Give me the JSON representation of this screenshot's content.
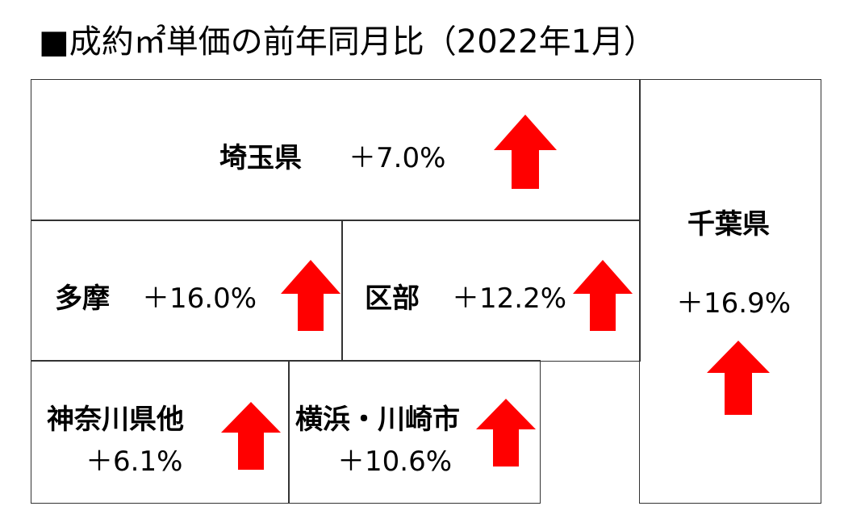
{
  "title": "■成約㎡単価の前年同月比（2022年1月）",
  "regions": {
    "saitama": {
      "name": "埼玉県",
      "change": "＋7.0%",
      "direction": "up"
    },
    "chiba": {
      "name": "千葉県",
      "change": "＋16.9%",
      "direction": "up"
    },
    "tama": {
      "name": "多摩",
      "change": "＋16.0%",
      "direction": "up"
    },
    "kubu": {
      "name": "区部",
      "change": "＋12.2%",
      "direction": "up"
    },
    "kanagawa": {
      "name": "神奈川県他",
      "change": "＋6.1%",
      "direction": "up"
    },
    "yokohama": {
      "name": "横浜・川崎市",
      "change": "＋10.6%",
      "direction": "up"
    }
  },
  "colors": {
    "arrow": "#ff0000",
    "border": "#333333"
  }
}
